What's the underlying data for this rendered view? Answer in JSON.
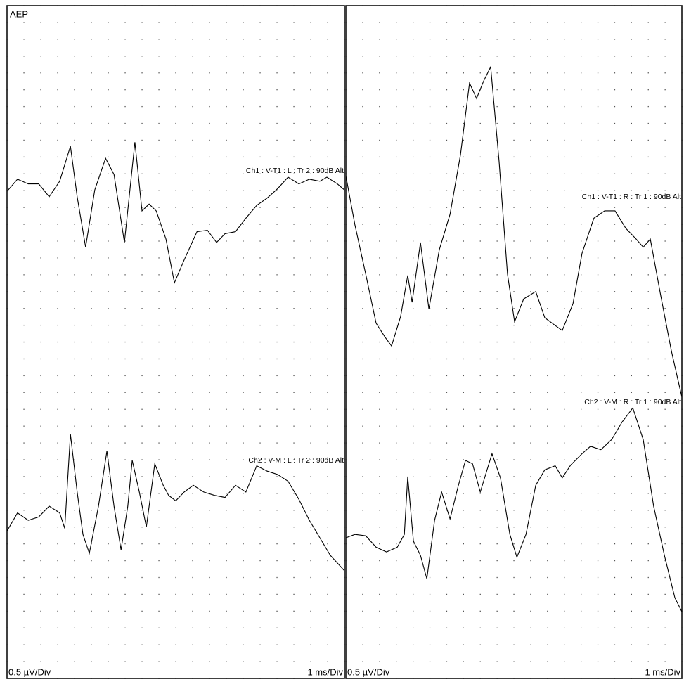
{
  "chart_data": [
    {
      "type": "line",
      "title": "AEP",
      "y_scale_label": "0.5 µV/Div",
      "x_scale_label": "1 ms/Div",
      "xlim": [
        0,
        10
      ],
      "ylim": [
        0,
        10
      ],
      "xticks": [
        0,
        0.5,
        1,
        1.5,
        2,
        2.5,
        3,
        3.5,
        4,
        4.5,
        5,
        5.5,
        6,
        6.5,
        7,
        7.5,
        8,
        8.5,
        9,
        9.5,
        10
      ],
      "yticks": [
        0,
        0.25,
        0.5,
        0.75,
        1,
        1.25,
        1.5,
        1.75,
        2,
        2.25,
        2.5,
        2.75,
        3,
        3.25,
        3.5,
        3.75,
        4,
        4.25,
        4.5,
        4.75,
        5,
        5.25,
        5.5,
        5.75,
        6,
        6.25,
        6.5,
        6.75,
        7,
        7.25,
        7.5,
        7.75,
        8,
        8.25,
        8.5,
        8.75,
        9,
        9.25,
        9.5,
        9.75,
        10
      ],
      "series": [
        {
          "name": "Ch1 : V-T1 : L : Tr 2 : 90dB Alt",
          "color": "#000000",
          "x": [
            0,
            0.31,
            0.63,
            0.94,
            1.25,
            1.56,
            1.88,
            2.08,
            2.33,
            2.6,
            2.92,
            3.17,
            3.48,
            3.79,
            4,
            4.21,
            4.42,
            4.71,
            4.96,
            5.25,
            5.63,
            5.94,
            6.21,
            6.46,
            6.77,
            7.08,
            7.4,
            7.71,
            8.02,
            8.33,
            8.65,
            8.96,
            9.27,
            9.48,
            9.79,
            10
          ],
          "values": [
            7.24,
            7.42,
            7.35,
            7.35,
            7.16,
            7.39,
            7.91,
            7.16,
            6.41,
            7.26,
            7.73,
            7.49,
            6.48,
            7.97,
            6.95,
            7.05,
            6.95,
            6.53,
            5.88,
            6.22,
            6.64,
            6.66,
            6.48,
            6.61,
            6.64,
            6.84,
            7.03,
            7.14,
            7.28,
            7.45,
            7.35,
            7.42,
            7.39,
            7.45,
            7.35,
            7.26
          ]
        },
        {
          "name": "Ch2 : V-M : L : Tr 2 : 90dB Alt",
          "color": "#000000",
          "x": [
            0,
            0.31,
            0.63,
            0.94,
            1.25,
            1.56,
            1.71,
            1.88,
            2.08,
            2.25,
            2.44,
            2.71,
            2.96,
            3.17,
            3.38,
            3.58,
            3.71,
            3.92,
            4.13,
            4.38,
            4.63,
            4.79,
            5,
            5.25,
            5.52,
            5.83,
            6.15,
            6.46,
            6.77,
            7.08,
            7.4,
            7.71,
            8.02,
            8.33,
            8.65,
            8.96,
            9.27,
            9.58,
            10
          ],
          "values": [
            2.19,
            2.46,
            2.35,
            2.4,
            2.56,
            2.46,
            2.23,
            3.63,
            2.77,
            2.14,
            1.86,
            2.56,
            3.38,
            2.56,
            1.91,
            2.56,
            3.24,
            2.77,
            2.25,
            3.19,
            2.87,
            2.72,
            2.64,
            2.77,
            2.87,
            2.77,
            2.72,
            2.69,
            2.87,
            2.77,
            3.16,
            3.08,
            3.03,
            2.93,
            2.66,
            2.35,
            2.09,
            1.83,
            1.6
          ]
        }
      ]
    },
    {
      "type": "line",
      "y_scale_label": "0.5 µV/Div",
      "x_scale_label": "1 ms/Div",
      "xlim": [
        0,
        10
      ],
      "ylim": [
        0,
        10
      ],
      "xticks": [
        0,
        0.5,
        1,
        1.5,
        2,
        2.5,
        3,
        3.5,
        4,
        4.5,
        5,
        5.5,
        6,
        6.5,
        7,
        7.5,
        8,
        8.5,
        9,
        9.5,
        10
      ],
      "yticks": [
        0,
        0.25,
        0.5,
        0.75,
        1,
        1.25,
        1.5,
        1.75,
        2,
        2.25,
        2.5,
        2.75,
        3,
        3.25,
        3.5,
        3.75,
        4,
        4.25,
        4.5,
        4.75,
        5,
        5.25,
        5.5,
        5.75,
        6,
        6.25,
        6.5,
        6.75,
        7,
        7.25,
        7.5,
        7.75,
        8,
        8.25,
        8.5,
        8.75,
        9,
        9.25,
        9.5,
        9.75,
        10
      ],
      "series": [
        {
          "name": "Ch1 : V-T1 : R : Tr 1 : 90dB Alt",
          "color": "#000000",
          "x": [
            0,
            0.27,
            0.59,
            0.9,
            1.17,
            1.36,
            1.63,
            1.84,
            1.97,
            2.22,
            2.47,
            2.78,
            3.1,
            3.41,
            3.68,
            3.89,
            4.1,
            4.31,
            4.56,
            4.81,
            5.02,
            5.29,
            5.65,
            5.92,
            6.19,
            6.44,
            6.76,
            7.03,
            7.38,
            7.7,
            8.01,
            8.33,
            8.64,
            8.85,
            9.06,
            9.37,
            9.69,
            10
          ],
          "values": [
            7.47,
            6.74,
            6.01,
            5.28,
            5.07,
            4.94,
            5.38,
            5.99,
            5.59,
            6.48,
            5.49,
            6.37,
            6.9,
            7.78,
            8.85,
            8.62,
            8.88,
            9.09,
            7.68,
            6.01,
            5.3,
            5.64,
            5.75,
            5.36,
            5.26,
            5.17,
            5.57,
            6.32,
            6.84,
            6.95,
            6.95,
            6.69,
            6.53,
            6.41,
            6.53,
            5.69,
            4.86,
            4.18
          ]
        },
        {
          "name": "Ch2 : V-M : R : Tr 1 : 90dB Alt",
          "color": "#000000",
          "x": [
            0,
            0.27,
            0.59,
            0.9,
            1.21,
            1.53,
            1.74,
            1.84,
            2.01,
            2.22,
            2.41,
            2.64,
            2.85,
            3.1,
            3.35,
            3.56,
            3.77,
            4,
            4.35,
            4.6,
            4.88,
            5.09,
            5.36,
            5.65,
            5.92,
            6.23,
            6.44,
            6.69,
            7.03,
            7.28,
            7.59,
            7.91,
            8.22,
            8.54,
            8.85,
            9.16,
            9.48,
            9.79,
            10
          ],
          "values": [
            2.09,
            2.14,
            2.12,
            1.95,
            1.88,
            1.95,
            2.14,
            3,
            2.04,
            1.83,
            1.48,
            2.35,
            2.77,
            2.37,
            2.87,
            3.24,
            3.19,
            2.77,
            3.34,
            2.98,
            2.14,
            1.8,
            2.14,
            2.87,
            3.1,
            3.16,
            2.98,
            3.17,
            3.34,
            3.45,
            3.4,
            3.55,
            3.81,
            4.02,
            3.55,
            2.56,
            1.83,
            1.2,
            0.99
          ]
        }
      ]
    }
  ]
}
